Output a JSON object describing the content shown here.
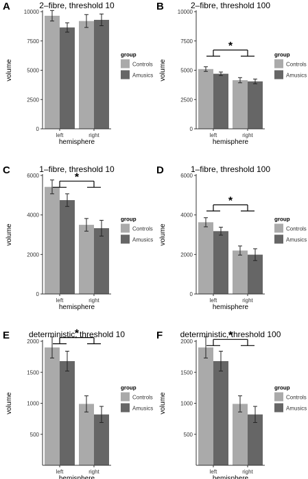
{
  "legend": {
    "title": "group",
    "entries": [
      {
        "name": "Controls",
        "color": "#aaaaaa"
      },
      {
        "name": "Amusics",
        "color": "#666666"
      }
    ]
  },
  "chart_data": [
    {
      "type": "bar",
      "panel_label": "A",
      "title": "2–fibre, threshold 10",
      "xlabel": "hemisphere",
      "ylabel": "volume",
      "categories": [
        "left",
        "right"
      ],
      "ylim": [
        0,
        10000
      ],
      "yticks": [
        0,
        2500,
        5000,
        7500,
        10000
      ],
      "series": [
        {
          "name": "Controls",
          "values": [
            9650,
            9200
          ],
          "errors": [
            450,
            550
          ]
        },
        {
          "name": "Amusics",
          "values": [
            8650,
            9300
          ],
          "errors": [
            400,
            500
          ]
        }
      ],
      "significance": null
    },
    {
      "type": "bar",
      "panel_label": "B",
      "title": "2–fibre, threshold 100",
      "xlabel": "hemisphere",
      "ylabel": "volume",
      "categories": [
        "left",
        "right"
      ],
      "ylim": [
        0,
        10000
      ],
      "yticks": [
        0,
        2500,
        5000,
        7500,
        10000
      ],
      "series": [
        {
          "name": "Controls",
          "values": [
            5100,
            4150
          ],
          "errors": [
            200,
            220
          ]
        },
        {
          "name": "Amusics",
          "values": [
            4700,
            4050
          ],
          "errors": [
            150,
            200
          ]
        }
      ],
      "significance": {
        "label": "*",
        "y": 6200
      }
    },
    {
      "type": "bar",
      "panel_label": "C",
      "title": "1–fibre, threshold 10",
      "xlabel": "hemisphere",
      "ylabel": "volume",
      "categories": [
        "left",
        "right"
      ],
      "ylim": [
        0,
        6000
      ],
      "yticks": [
        0,
        2000,
        4000,
        6000
      ],
      "series": [
        {
          "name": "Controls",
          "values": [
            5420,
            3500
          ],
          "errors": [
            350,
            320
          ]
        },
        {
          "name": "Amusics",
          "values": [
            4750,
            3330
          ],
          "errors": [
            320,
            400
          ]
        }
      ],
      "significance": {
        "label": "*",
        "y": 5400
      }
    },
    {
      "type": "bar",
      "panel_label": "D",
      "title": "1–fibre, threshold 100",
      "xlabel": "hemisphere",
      "ylabel": "volume",
      "categories": [
        "left",
        "right"
      ],
      "ylim": [
        0,
        6000
      ],
      "yticks": [
        0,
        2000,
        4000,
        6000
      ],
      "series": [
        {
          "name": "Controls",
          "values": [
            3630,
            2200
          ],
          "errors": [
            230,
            230
          ]
        },
        {
          "name": "Amusics",
          "values": [
            3180,
            1990
          ],
          "errors": [
            200,
            300
          ]
        }
      ],
      "significance": {
        "label": "*",
        "y": 4200
      }
    },
    {
      "type": "bar",
      "panel_label": "E",
      "title": "deterministic, threshold 10",
      "xlabel": "hemisphere",
      "ylabel": "volume",
      "categories": [
        "left",
        "right"
      ],
      "ylim": [
        0,
        2000
      ],
      "yticks": [
        500,
        1000,
        1500,
        2000
      ],
      "series": [
        {
          "name": "Controls",
          "values": [
            1900,
            990
          ],
          "errors": [
            170,
            130
          ]
        },
        {
          "name": "Amusics",
          "values": [
            1680,
            820
          ],
          "errors": [
            160,
            130
          ]
        }
      ],
      "significance": {
        "label": "*",
        "y": 1960
      }
    },
    {
      "type": "bar",
      "panel_label": "F",
      "title": "deterministic, threshold 100",
      "xlabel": "hemisphere",
      "ylabel": "volume",
      "categories": [
        "left",
        "right"
      ],
      "ylim": [
        0,
        2000
      ],
      "yticks": [
        500,
        1000,
        1500,
        2000
      ],
      "series": [
        {
          "name": "Controls",
          "values": [
            1900,
            990
          ],
          "errors": [
            170,
            130
          ]
        },
        {
          "name": "Amusics",
          "values": [
            1680,
            820
          ],
          "errors": [
            160,
            130
          ]
        }
      ],
      "significance": {
        "label": "*",
        "y": 1930
      }
    }
  ]
}
